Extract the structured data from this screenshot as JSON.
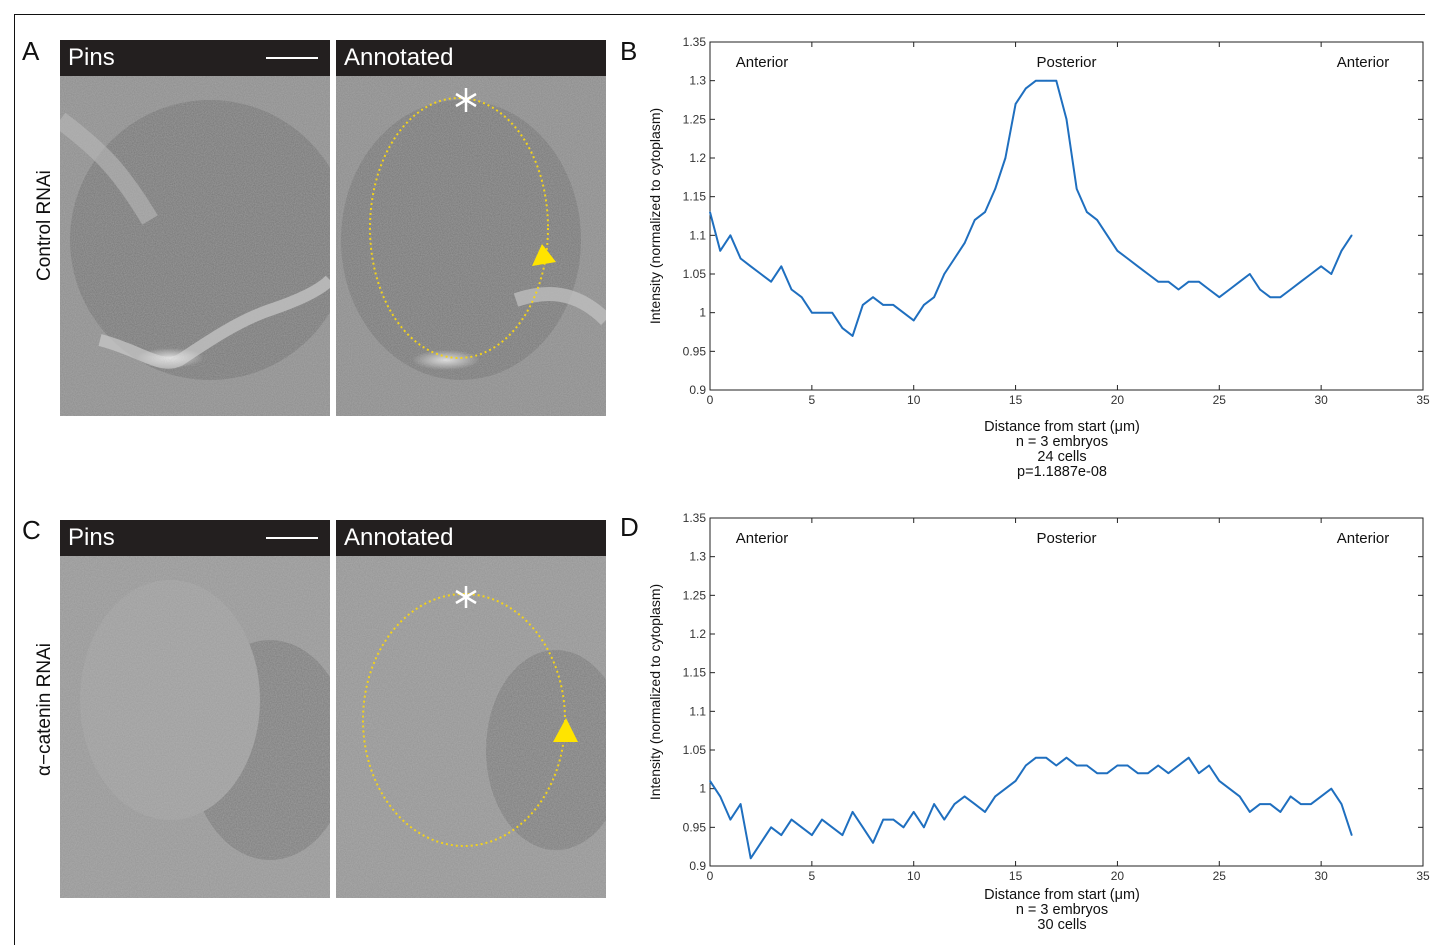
{
  "panels": {
    "A": {
      "letter": "A",
      "row_label": "Control RNAi",
      "left_label": "Pins",
      "right_label": "Annotated"
    },
    "B": {
      "letter": "B"
    },
    "C": {
      "letter": "C",
      "row_label": "α−catenin RNAi",
      "left_label": "Pins",
      "right_label": "Annotated"
    },
    "D": {
      "letter": "D"
    }
  },
  "annotation_colors": {
    "ellipse": "#f2d21b",
    "arrow": "#ffe400",
    "asterisk": "#ffffff"
  },
  "chart_data": [
    {
      "type": "line",
      "panel": "B",
      "xlabel": "Distance from start  (μm)",
      "ylabel": "Intensity (normalized to cytoplasm)",
      "xlim": [
        0,
        35
      ],
      "ylim": [
        0.9,
        1.35
      ],
      "xticks": [
        "0",
        "5",
        "10",
        "15",
        "20",
        "25",
        "30",
        "35"
      ],
      "yticks": [
        "0.9",
        "0.95",
        "1",
        "1.05",
        "1.1",
        "1.15",
        "1.2",
        "1.25",
        "1.3",
        "1.35"
      ],
      "region_labels": [
        "Anterior",
        "Posterior",
        "Anterior"
      ],
      "caption": [
        "n = 3 embryos",
        "24 cells",
        "p=1.1887e-08"
      ],
      "color": "#1f6fbf",
      "series": [
        {
          "x": [
            0,
            0.5,
            1,
            1.5,
            2,
            2.5,
            3,
            3.5,
            4,
            4.5,
            5,
            5.5,
            6,
            6.5,
            7,
            7.5,
            8,
            8.5,
            9,
            9.5,
            10,
            10.5,
            11,
            11.5,
            12,
            12.5,
            13,
            13.5,
            14,
            14.5,
            15,
            15.5,
            16,
            16.5,
            17,
            17.5,
            18,
            18.5,
            19,
            19.5,
            20,
            20.5,
            21,
            21.5,
            22,
            22.5,
            23,
            23.5,
            24,
            24.5,
            25,
            25.5,
            26,
            26.5,
            27,
            27.5,
            28,
            28.5,
            29,
            29.5,
            30,
            30.5,
            31,
            31.5
          ],
          "values": [
            1.13,
            1.08,
            1.1,
            1.07,
            1.06,
            1.05,
            1.04,
            1.06,
            1.03,
            1.02,
            1.0,
            1.0,
            1.0,
            0.98,
            0.97,
            1.01,
            1.02,
            1.01,
            1.01,
            1.0,
            0.99,
            1.01,
            1.02,
            1.05,
            1.07,
            1.09,
            1.12,
            1.13,
            1.16,
            1.2,
            1.27,
            1.29,
            1.3,
            1.3,
            1.3,
            1.25,
            1.16,
            1.13,
            1.12,
            1.1,
            1.08,
            1.07,
            1.06,
            1.05,
            1.04,
            1.04,
            1.03,
            1.04,
            1.04,
            1.03,
            1.02,
            1.03,
            1.04,
            1.05,
            1.03,
            1.02,
            1.02,
            1.03,
            1.04,
            1.05,
            1.06,
            1.05,
            1.08,
            1.1
          ]
        }
      ]
    },
    {
      "type": "line",
      "panel": "D",
      "xlabel": "Distance from start  (μm)",
      "ylabel": "Intensity (normalized to cytoplasm)",
      "xlim": [
        0,
        35
      ],
      "ylim": [
        0.9,
        1.35
      ],
      "xticks": [
        "0",
        "5",
        "10",
        "15",
        "20",
        "25",
        "30",
        "35"
      ],
      "yticks": [
        "0.9",
        "0.95",
        "1",
        "1.05",
        "1.1",
        "1.15",
        "1.2",
        "1.25",
        "1.3",
        "1.35"
      ],
      "region_labels": [
        "Anterior",
        "Posterior",
        "Anterior"
      ],
      "caption": [
        "n = 3 embryos",
        "30 cells"
      ],
      "color": "#1f6fbf",
      "series": [
        {
          "x": [
            0,
            0.5,
            1,
            1.5,
            2,
            2.5,
            3,
            3.5,
            4,
            4.5,
            5,
            5.5,
            6,
            6.5,
            7,
            7.5,
            8,
            8.5,
            9,
            9.5,
            10,
            10.5,
            11,
            11.5,
            12,
            12.5,
            13,
            13.5,
            14,
            14.5,
            15,
            15.5,
            16,
            16.5,
            17,
            17.5,
            18,
            18.5,
            19,
            19.5,
            20,
            20.5,
            21,
            21.5,
            22,
            22.5,
            23,
            23.5,
            24,
            24.5,
            25,
            25.5,
            26,
            26.5,
            27,
            27.5,
            28,
            28.5,
            29,
            29.5,
            30,
            30.5,
            31,
            31.5
          ],
          "values": [
            1.01,
            0.99,
            0.96,
            0.98,
            0.91,
            0.93,
            0.95,
            0.94,
            0.96,
            0.95,
            0.94,
            0.96,
            0.95,
            0.94,
            0.97,
            0.95,
            0.93,
            0.96,
            0.96,
            0.95,
            0.97,
            0.95,
            0.98,
            0.96,
            0.98,
            0.99,
            0.98,
            0.97,
            0.99,
            1.0,
            1.01,
            1.03,
            1.04,
            1.04,
            1.03,
            1.04,
            1.03,
            1.03,
            1.02,
            1.02,
            1.03,
            1.03,
            1.02,
            1.02,
            1.03,
            1.02,
            1.03,
            1.04,
            1.02,
            1.03,
            1.01,
            1.0,
            0.99,
            0.97,
            0.98,
            0.98,
            0.97,
            0.99,
            0.98,
            0.98,
            0.99,
            1.0,
            0.98,
            0.94
          ]
        }
      ]
    }
  ]
}
